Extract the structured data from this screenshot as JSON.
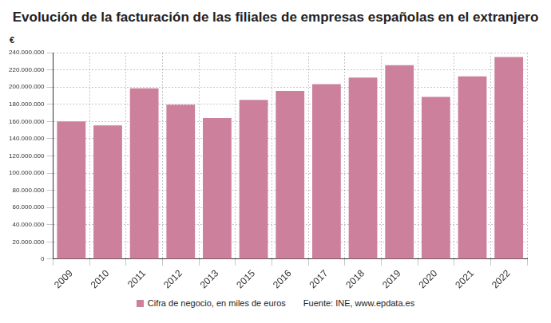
{
  "chart_data": {
    "type": "bar",
    "title": "Evolución de la facturación de las filiales de empresas españolas en el extranjero",
    "ylabel": "€",
    "source": "Fuente: INE, www.epdata.es",
    "categories": [
      "2009",
      "2010",
      "2011",
      "2012",
      "2013",
      "2015",
      "2016",
      "2017",
      "2018",
      "2019",
      "2020",
      "2021",
      "2022"
    ],
    "series": [
      {
        "name": "Cifra de negocio, en miles de euros",
        "color": "#cc809c",
        "values": [
          160000000,
          155500000,
          198500000,
          179500000,
          164000000,
          185000000,
          195500000,
          203500000,
          211000000,
          225500000,
          188500000,
          212500000,
          235000000
        ]
      }
    ],
    "ylim": [
      0,
      240000000
    ],
    "yticks": [
      0,
      {
        "value": 20000000,
        "label": "20.000.000"
      },
      {
        "value": 40000000,
        "label": "40.000.000"
      },
      {
        "value": 60000000,
        "label": "60.000.000"
      },
      {
        "value": 80000000,
        "label": "80.000.000"
      },
      {
        "value": 100000000,
        "label": "100.000.000"
      },
      {
        "value": 120000000,
        "label": "120.000.000"
      },
      {
        "value": 140000000,
        "label": "140.000.000"
      },
      {
        "value": 160000000,
        "label": "160.000.000"
      },
      {
        "value": 180000000,
        "label": "180.000.000"
      },
      {
        "value": 200000000,
        "label": "200.000.000"
      },
      {
        "value": 220000000,
        "label": "220.000.000"
      },
      {
        "value": 240000000,
        "label": "240.000.000"
      }
    ],
    "grid": true,
    "legend": "bottom"
  }
}
